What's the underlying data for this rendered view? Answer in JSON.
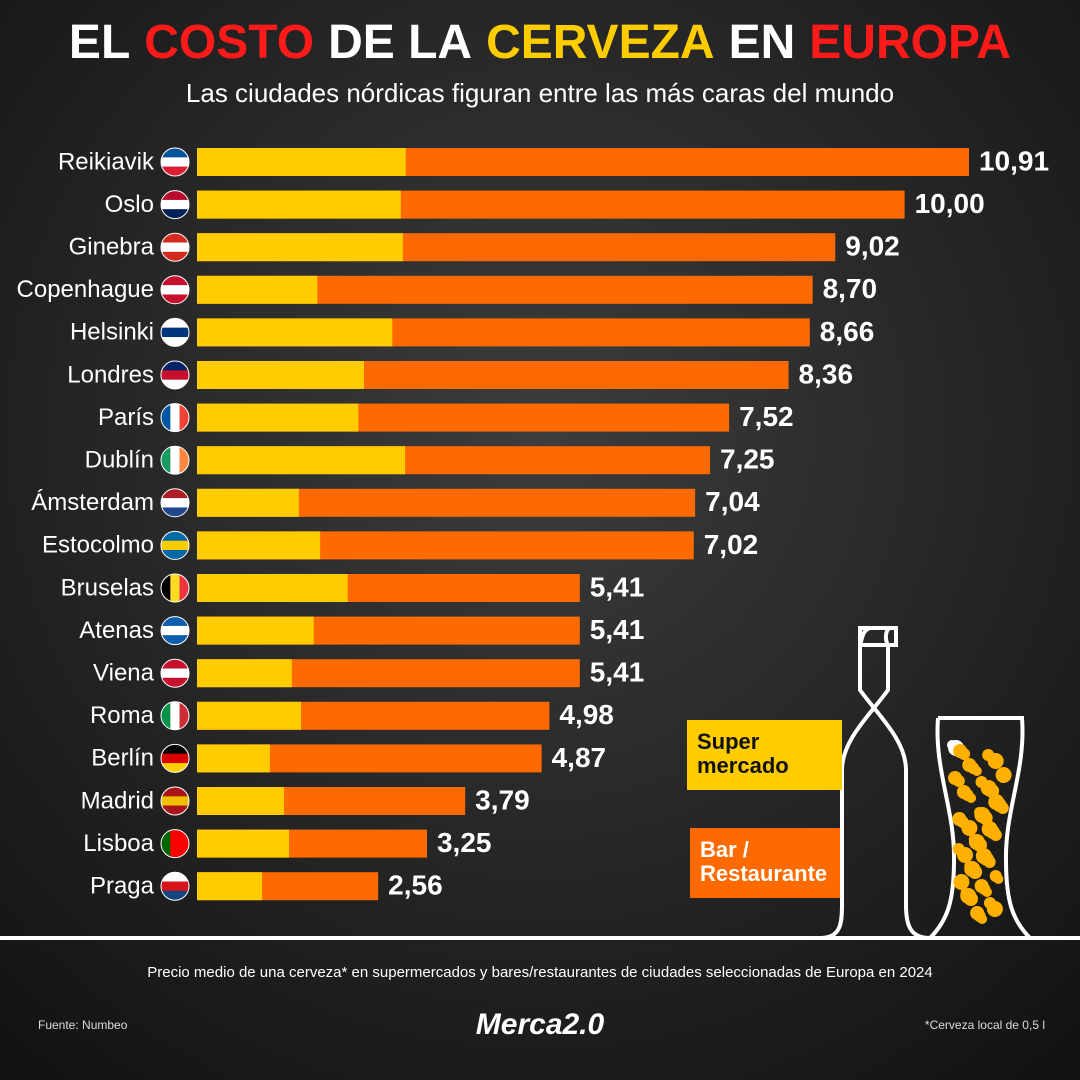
{
  "chart_data": {
    "type": "bar",
    "orientation": "horizontal",
    "title": [
      "EL",
      "COSTO",
      "DE LA",
      "CERVEZA",
      "EN",
      "EUROPA"
    ],
    "title_colors": [
      "#ffffff",
      "#ff1a1a",
      "#ffffff",
      "#ffcc00",
      "#ffffff",
      "#ff1a1a"
    ],
    "subtitle": "Las ciudades nórdicas figuran entre las más caras del mundo",
    "categories": [
      "Reikiavik",
      "Oslo",
      "Ginebra",
      "Copenhague",
      "Helsinki",
      "Londres",
      "París",
      "Dublín",
      "Ámsterdam",
      "Estocolmo",
      "Bruselas",
      "Atenas",
      "Viena",
      "Roma",
      "Berlín",
      "Madrid",
      "Lisboa",
      "Praga"
    ],
    "series": [
      {
        "name": "Bar / Restaurante",
        "color": "#ff6a00",
        "values": [
          10.91,
          10.0,
          9.02,
          8.7,
          8.66,
          8.36,
          7.52,
          7.25,
          7.04,
          7.02,
          5.41,
          5.41,
          5.41,
          4.98,
          4.87,
          3.79,
          3.25,
          2.56
        ],
        "value_labels": [
          "10,91",
          "10,00",
          "9,02",
          "8,70",
          "8,66",
          "8,36",
          "7,52",
          "7,25",
          "7,04",
          "7,02",
          "5,41",
          "5,41",
          "5,41",
          "4,98",
          "4,87",
          "3,79",
          "3,25",
          "2,56"
        ]
      },
      {
        "name": "Super mercado",
        "color": "#ffcc00",
        "values": [
          2.95,
          2.88,
          2.91,
          1.7,
          2.76,
          2.36,
          2.28,
          2.94,
          1.44,
          1.74,
          2.13,
          1.65,
          1.34,
          1.47,
          1.03,
          1.23,
          1.3,
          0.92
        ]
      }
    ],
    "note": "Precio medio de una cerveza* en supermercados y bares/restaurantes de ciudades seleccionadas de Europa en 2024",
    "source": "Fuente: Numbeo",
    "logo": "Merca2.0",
    "footnote": "*Cerveza local de 0,5 l"
  }
}
